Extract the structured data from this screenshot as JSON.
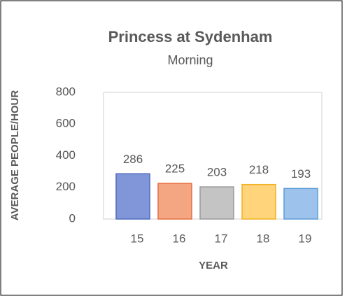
{
  "chart_data": {
    "type": "bar",
    "title": "Princess at Sydenham",
    "subtitle": "Morning",
    "x_label": "YEAR",
    "y_label": "AVERAGE PEOPLE/HOUR",
    "categories": [
      "15",
      "16",
      "17",
      "18",
      "19"
    ],
    "values": [
      286,
      225,
      203,
      218,
      193
    ],
    "colors": [
      "#8096d8",
      "#f4a582",
      "#c4c4c4",
      "#ffd47a",
      "#9dc3ec"
    ],
    "edge_colors": [
      "#4f6bbf",
      "#e56d40",
      "#9a9a9a",
      "#f0b020",
      "#5b9bd5"
    ],
    "ylim": [
      0,
      800
    ],
    "yticks": [
      0,
      200,
      400,
      600,
      800
    ],
    "grid": false
  }
}
